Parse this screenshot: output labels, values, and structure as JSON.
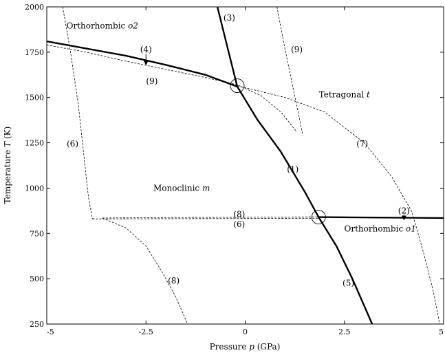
{
  "chart_data": {
    "type": "line",
    "xlabel": "Pressure p (GPa)",
    "xlabel_parts": [
      "Pressure ",
      "p",
      " (GPa)"
    ],
    "ylabel": "Temperature T (K)",
    "ylabel_parts": [
      "Temperature ",
      "T",
      " (K)"
    ],
    "xlim": [
      -5,
      5
    ],
    "ylim": [
      250,
      2000
    ],
    "xticks": [
      -5,
      -2.5,
      0,
      2.5,
      5
    ],
    "xtick_labels": [
      "-5",
      "-2.5",
      "0",
      "2.5",
      "5"
    ],
    "yticks": [
      250,
      500,
      750,
      1000,
      1250,
      1500,
      1750,
      2000
    ],
    "ytick_labels": [
      "250",
      "500",
      "750",
      "1000",
      "1250",
      "1500",
      "1750",
      "2000"
    ],
    "grid": false,
    "regions": [
      {
        "id": "o2",
        "name": "Orthorhombic ",
        "symbol": "o2",
        "x": -3.6,
        "y": 1880
      },
      {
        "id": "t",
        "name": "Tetragonal ",
        "symbol": "t",
        "x": 2.5,
        "y": 1500
      },
      {
        "id": "m",
        "name": "Monoclinic ",
        "symbol": "m",
        "x": -1.6,
        "y": 985
      },
      {
        "id": "o1",
        "name": "Orthorhombic ",
        "symbol": "o1",
        "x": 3.4,
        "y": 760
      }
    ],
    "series": [
      {
        "id": "c1",
        "label": "(1)",
        "style": "thick",
        "points": [
          [
            -0.2,
            1560
          ],
          [
            0.3,
            1380
          ],
          [
            0.9,
            1200
          ],
          [
            1.5,
            980
          ],
          [
            1.85,
            840
          ]
        ]
      },
      {
        "id": "c2",
        "label": "(2)",
        "style": "thick",
        "points": [
          [
            1.85,
            840
          ],
          [
            5.0,
            835
          ]
        ]
      },
      {
        "id": "c3",
        "label": "(3)",
        "style": "thick",
        "points": [
          [
            -0.7,
            2000
          ],
          [
            -0.45,
            1780
          ],
          [
            -0.2,
            1560
          ]
        ]
      },
      {
        "id": "c4",
        "label": "(4)",
        "style": "thick",
        "points": [
          [
            -5.0,
            1810
          ],
          [
            -4.0,
            1770
          ],
          [
            -3.0,
            1730
          ],
          [
            -2.0,
            1680
          ],
          [
            -1.0,
            1625
          ],
          [
            -0.2,
            1560
          ]
        ]
      },
      {
        "id": "c5",
        "label": "(5)",
        "style": "thick",
        "points": [
          [
            1.85,
            840
          ],
          [
            2.3,
            680
          ],
          [
            2.7,
            500
          ],
          [
            3.2,
            250
          ]
        ]
      },
      {
        "id": "c6a",
        "label": "(6)",
        "style": "dashed",
        "points": [
          [
            -4.6,
            2000
          ],
          [
            -4.4,
            1750
          ],
          [
            -4.2,
            1450
          ],
          [
            -4.05,
            1150
          ],
          [
            -3.95,
            950
          ],
          [
            -3.85,
            830
          ]
        ]
      },
      {
        "id": "c6b",
        "label": "(6)",
        "style": "dashed",
        "points": [
          [
            -3.85,
            830
          ],
          [
            -2.0,
            831
          ],
          [
            0.0,
            832
          ],
          [
            1.85,
            834
          ]
        ]
      },
      {
        "id": "c7",
        "label": "(7)",
        "style": "dashed",
        "points": [
          [
            -0.2,
            1565
          ],
          [
            1.0,
            1500
          ],
          [
            2.0,
            1420
          ],
          [
            3.0,
            1250
          ],
          [
            3.7,
            1060
          ],
          [
            4.2,
            870
          ],
          [
            4.5,
            640
          ],
          [
            4.75,
            420
          ],
          [
            4.9,
            250
          ]
        ]
      },
      {
        "id": "c8a",
        "label": "(8)",
        "style": "dashed",
        "points": [
          [
            -3.6,
            835
          ],
          [
            -1.5,
            838
          ],
          [
            0.5,
            840
          ],
          [
            1.85,
            842
          ]
        ]
      },
      {
        "id": "c8b",
        "label": "(8)",
        "style": "dashed",
        "points": [
          [
            -3.6,
            835
          ],
          [
            -3.0,
            780
          ],
          [
            -2.5,
            680
          ],
          [
            -2.1,
            540
          ],
          [
            -1.75,
            400
          ],
          [
            -1.45,
            250
          ]
        ]
      },
      {
        "id": "c9a",
        "label": "(9)",
        "style": "dashed",
        "points": [
          [
            -5.0,
            1790
          ],
          [
            -4.0,
            1750
          ],
          [
            -3.0,
            1700
          ],
          [
            -2.0,
            1655
          ],
          [
            -1.0,
            1610
          ],
          [
            -0.2,
            1570
          ],
          [
            0.4,
            1510
          ],
          [
            0.9,
            1420
          ],
          [
            1.3,
            1310
          ]
        ]
      },
      {
        "id": "c9b",
        "label": "(9)",
        "style": "dashed",
        "points": [
          [
            0.8,
            2000
          ],
          [
            1.0,
            1770
          ],
          [
            1.2,
            1560
          ],
          [
            1.4,
            1350
          ],
          [
            1.45,
            1290
          ]
        ]
      }
    ],
    "curve_labels": [
      {
        "text": "(1)",
        "x": 1.2,
        "y": 1105
      },
      {
        "text": "(2)",
        "x": 4.0,
        "y": 875
      },
      {
        "text": "(3)",
        "x": -0.4,
        "y": 1940
      },
      {
        "text": "(4)",
        "x": -2.5,
        "y": 1765
      },
      {
        "text": "(5)",
        "x": 2.6,
        "y": 475
      },
      {
        "text": "(6)",
        "x": -4.35,
        "y": 1245
      },
      {
        "text": "(6)",
        "x": -0.15,
        "y": 800
      },
      {
        "text": "(7)",
        "x": 2.95,
        "y": 1245
      },
      {
        "text": "(8)",
        "x": -0.15,
        "y": 855
      },
      {
        "text": "(8)",
        "x": -1.8,
        "y": 490
      },
      {
        "text": "(9)",
        "x": -2.35,
        "y": 1590
      },
      {
        "text": "(9)",
        "x": 1.3,
        "y": 1765
      }
    ],
    "markers": [
      {
        "type": "circle",
        "x": -0.2,
        "y": 1565
      },
      {
        "type": "circle",
        "x": 1.85,
        "y": 840
      }
    ],
    "arrows": [
      {
        "label": "(4)",
        "x": -2.5,
        "from_y": 1740,
        "to_y": 1690
      },
      {
        "label": "(2)",
        "x": 4.0,
        "from_y": 855,
        "to_y": 835
      }
    ]
  }
}
